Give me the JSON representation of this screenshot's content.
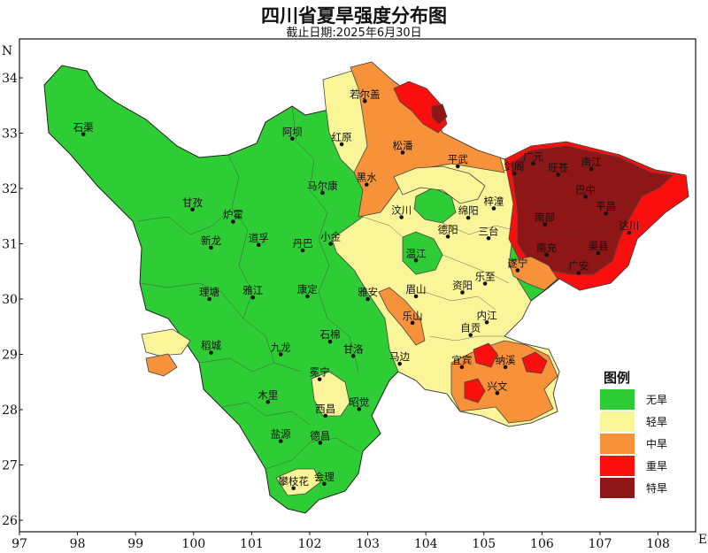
{
  "title": "四川省夏旱强度分布图",
  "subtitle": "截止日期:2025年6月30日",
  "axes": {
    "x_unit": "E",
    "y_unit": "N",
    "x_ticks": [
      "97",
      "98",
      "99",
      "100",
      "101",
      "102",
      "103",
      "104",
      "105",
      "106",
      "107",
      "108"
    ],
    "y_ticks": [
      "34",
      "33",
      "32",
      "31",
      "30",
      "29",
      "28",
      "27",
      "26"
    ]
  },
  "legend": {
    "title": "图例",
    "items": [
      {
        "label": "无旱",
        "color": "#2ecc35"
      },
      {
        "label": "轻旱",
        "color": "#fbf59a"
      },
      {
        "label": "中旱",
        "color": "#f7923a"
      },
      {
        "label": "重旱",
        "color": "#fb0e0e"
      },
      {
        "label": "特旱",
        "color": "#8e1616"
      }
    ]
  },
  "cities": [
    {
      "name": "若尔盖",
      "lon": 102.95,
      "lat": 33.58
    },
    {
      "name": "石渠",
      "lon": 98.1,
      "lat": 32.98
    },
    {
      "name": "阿坝",
      "lon": 101.7,
      "lat": 32.9
    },
    {
      "name": "红原",
      "lon": 102.55,
      "lat": 32.8
    },
    {
      "name": "松潘",
      "lon": 103.6,
      "lat": 32.65
    },
    {
      "name": "平武",
      "lon": 104.55,
      "lat": 32.4
    },
    {
      "name": "广元",
      "lon": 105.85,
      "lat": 32.45
    },
    {
      "name": "旺苍",
      "lon": 106.28,
      "lat": 32.25
    },
    {
      "name": "南江",
      "lon": 106.85,
      "lat": 32.35
    },
    {
      "name": "马尔康",
      "lon": 102.22,
      "lat": 31.92
    },
    {
      "name": "黑水",
      "lon": 102.98,
      "lat": 32.07
    },
    {
      "name": "剑阁",
      "lon": 105.52,
      "lat": 32.27
    },
    {
      "name": "巴中",
      "lon": 106.75,
      "lat": 31.85
    },
    {
      "name": "平昌",
      "lon": 107.1,
      "lat": 31.55
    },
    {
      "name": "甘孜",
      "lon": 99.98,
      "lat": 31.62
    },
    {
      "name": "炉霍",
      "lon": 100.68,
      "lat": 31.4
    },
    {
      "name": "汶川",
      "lon": 103.58,
      "lat": 31.48
    },
    {
      "name": "绵阳",
      "lon": 104.73,
      "lat": 31.47
    },
    {
      "name": "梓潼",
      "lon": 105.17,
      "lat": 31.64
    },
    {
      "name": "南部",
      "lon": 106.05,
      "lat": 31.35
    },
    {
      "name": "达川",
      "lon": 107.5,
      "lat": 31.2
    },
    {
      "name": "新龙",
      "lon": 100.3,
      "lat": 30.93
    },
    {
      "name": "道孚",
      "lon": 101.12,
      "lat": 30.98
    },
    {
      "name": "丹巴",
      "lon": 101.88,
      "lat": 30.88
    },
    {
      "name": "小金",
      "lon": 102.36,
      "lat": 31.0
    },
    {
      "name": "德阳",
      "lon": 104.38,
      "lat": 31.13
    },
    {
      "name": "三台",
      "lon": 105.08,
      "lat": 31.1
    },
    {
      "name": "南充",
      "lon": 106.08,
      "lat": 30.8
    },
    {
      "name": "渠县",
      "lon": 106.97,
      "lat": 30.83
    },
    {
      "name": "温江",
      "lon": 103.83,
      "lat": 30.7
    },
    {
      "name": "遂宁",
      "lon": 105.58,
      "lat": 30.52
    },
    {
      "name": "广安",
      "lon": 106.63,
      "lat": 30.47
    },
    {
      "name": "理塘",
      "lon": 100.27,
      "lat": 30.0
    },
    {
      "name": "雅江",
      "lon": 101.02,
      "lat": 30.03
    },
    {
      "name": "康定",
      "lon": 101.96,
      "lat": 30.05
    },
    {
      "name": "雅安",
      "lon": 103.0,
      "lat": 30.0
    },
    {
      "name": "眉山",
      "lon": 103.83,
      "lat": 30.05
    },
    {
      "name": "资阳",
      "lon": 104.63,
      "lat": 30.12
    },
    {
      "name": "乐至",
      "lon": 105.02,
      "lat": 30.28
    },
    {
      "name": "内江",
      "lon": 105.05,
      "lat": 29.58
    },
    {
      "name": "乐山",
      "lon": 103.77,
      "lat": 29.57
    },
    {
      "name": "稻城",
      "lon": 100.3,
      "lat": 29.03
    },
    {
      "name": "九龙",
      "lon": 101.5,
      "lat": 29.0
    },
    {
      "name": "石棉",
      "lon": 102.35,
      "lat": 29.23
    },
    {
      "name": "甘洛",
      "lon": 102.75,
      "lat": 28.97
    },
    {
      "name": "自贡",
      "lon": 104.77,
      "lat": 29.35
    },
    {
      "name": "马边",
      "lon": 103.55,
      "lat": 28.83
    },
    {
      "name": "宜宾",
      "lon": 104.62,
      "lat": 28.77
    },
    {
      "name": "纳溪",
      "lon": 105.37,
      "lat": 28.77
    },
    {
      "name": "冕宁",
      "lon": 102.17,
      "lat": 28.55
    },
    {
      "name": "兴文",
      "lon": 105.23,
      "lat": 28.3
    },
    {
      "name": "木里",
      "lon": 101.28,
      "lat": 28.14
    },
    {
      "name": "西昌",
      "lon": 102.27,
      "lat": 27.89
    },
    {
      "name": "昭觉",
      "lon": 102.85,
      "lat": 28.01
    },
    {
      "name": "盐源",
      "lon": 101.5,
      "lat": 27.43
    },
    {
      "name": "德昌",
      "lon": 102.18,
      "lat": 27.4
    },
    {
      "name": "攀枝花",
      "lon": 101.72,
      "lat": 26.58
    },
    {
      "name": "会理",
      "lon": 102.25,
      "lat": 26.66
    }
  ]
}
